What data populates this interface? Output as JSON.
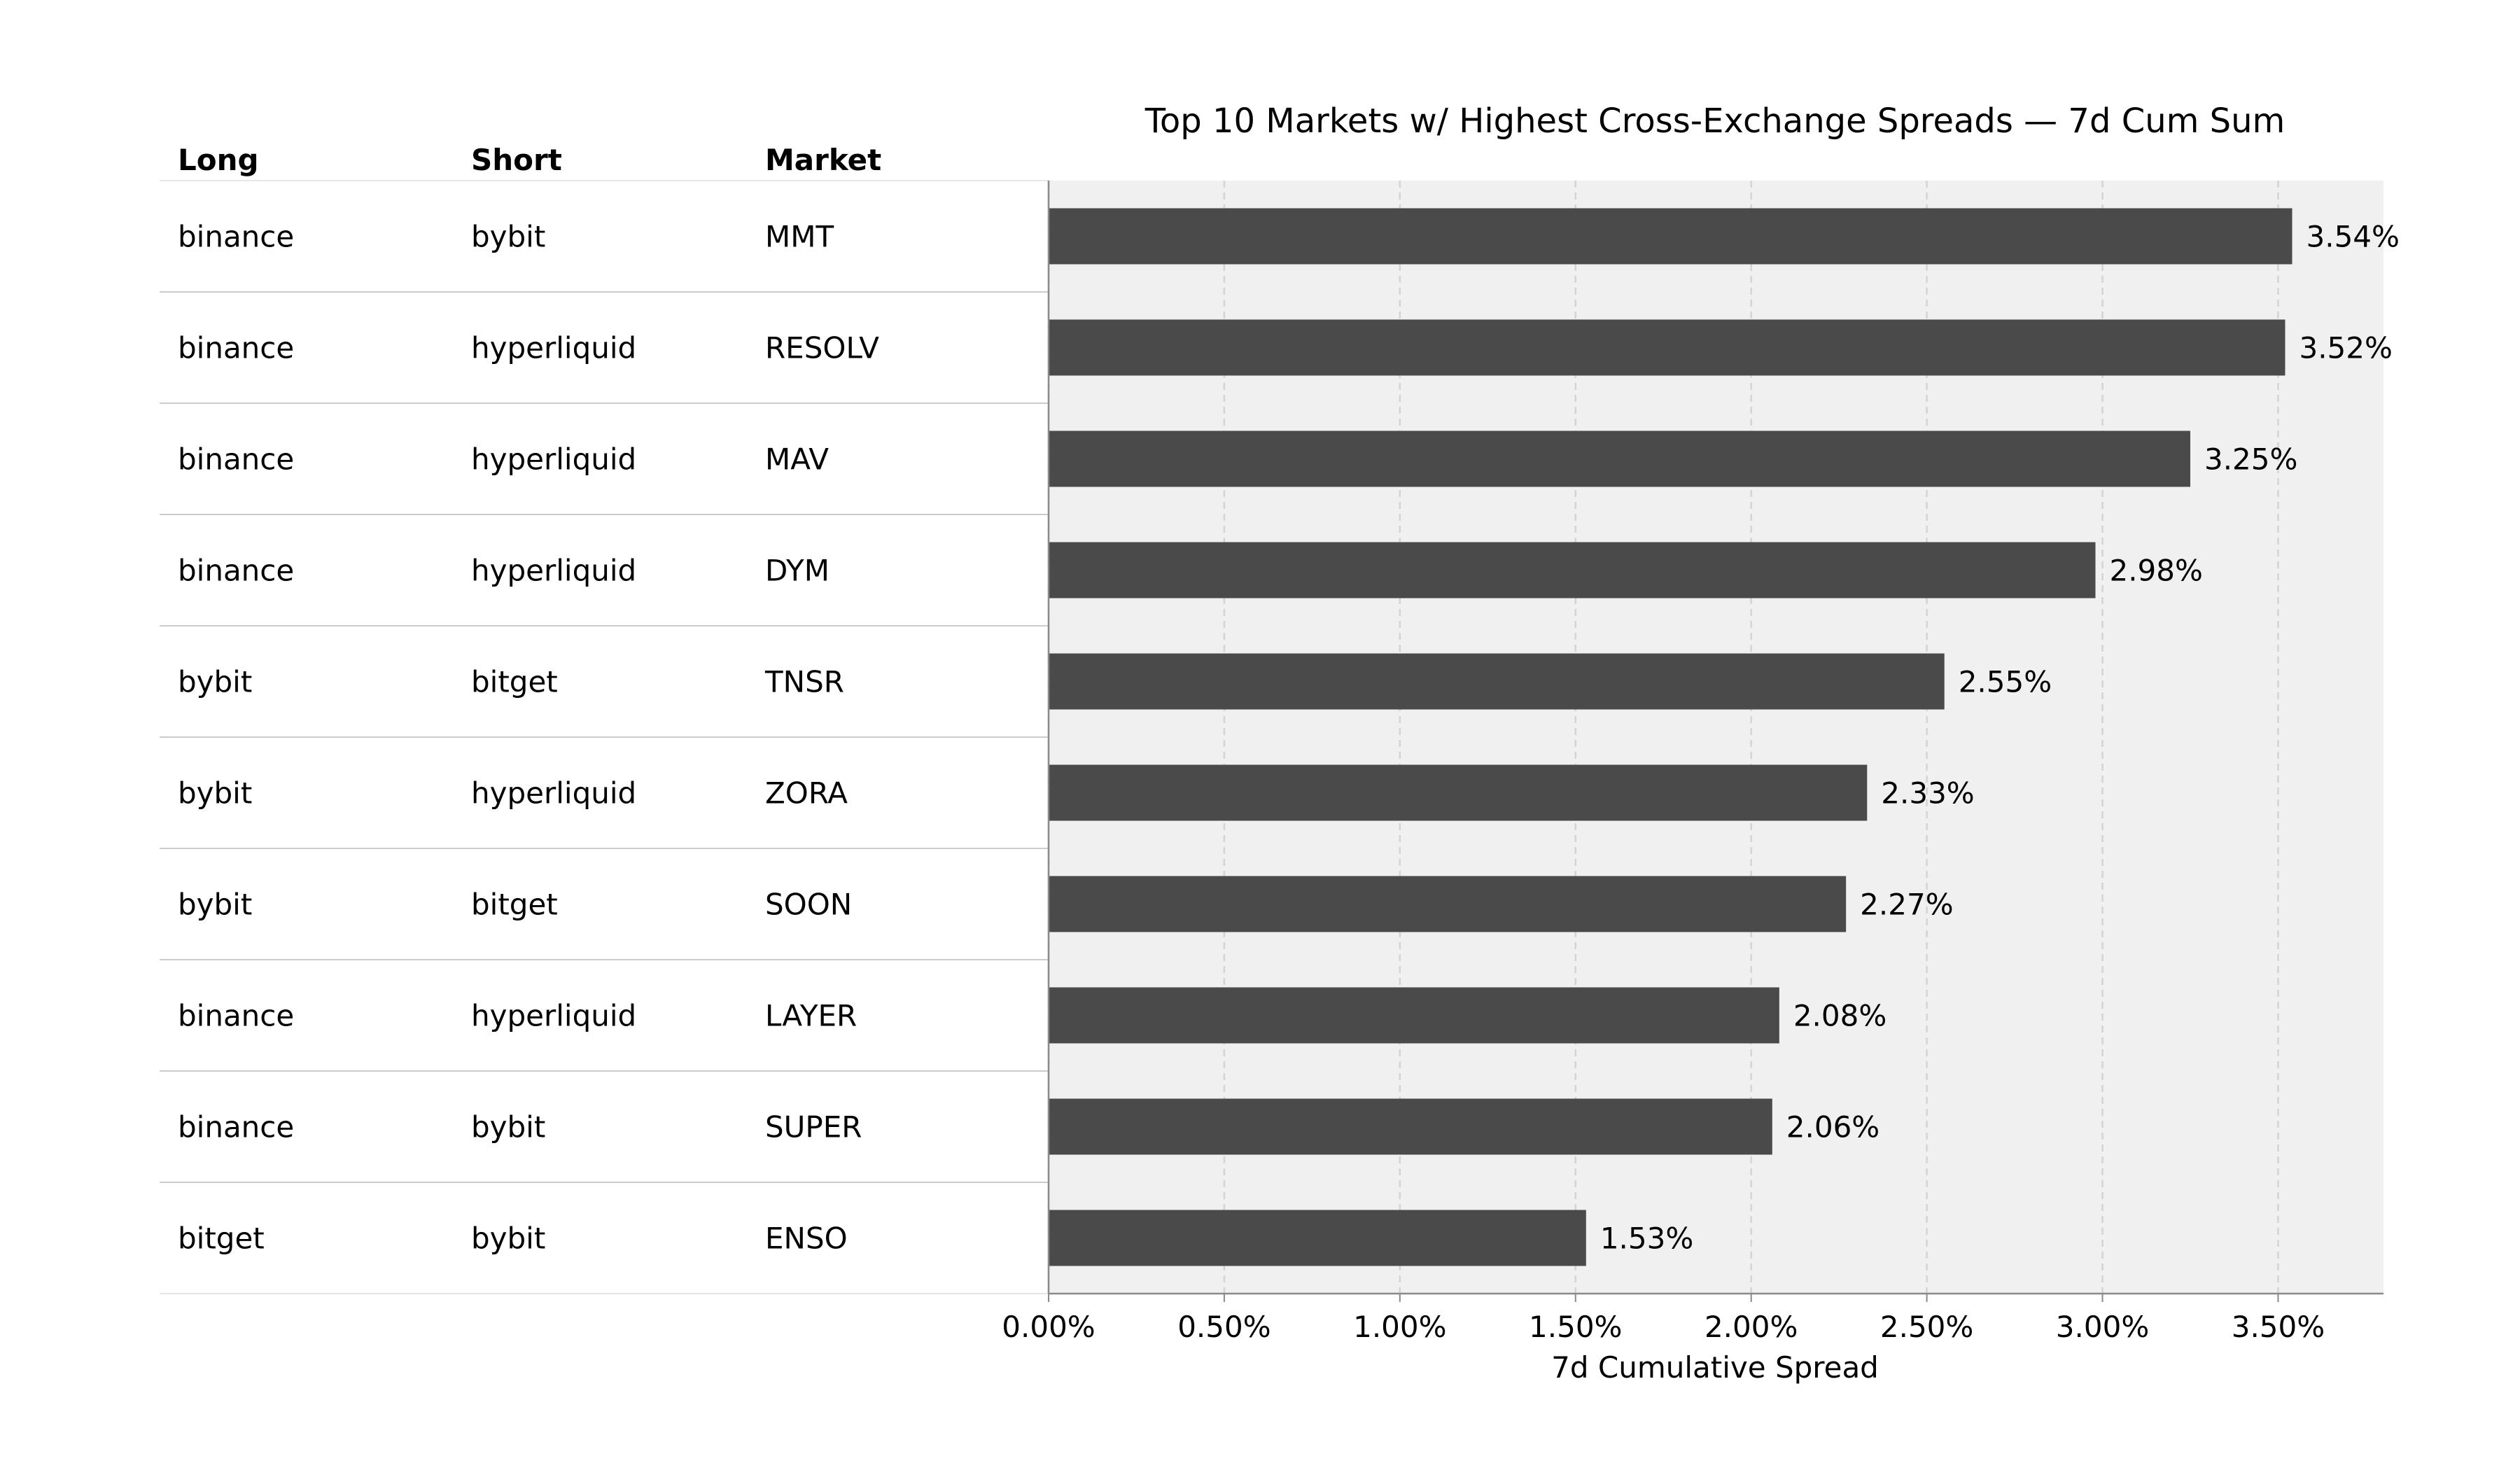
{
  "table": {
    "headers": [
      "Long",
      "Short",
      "Market"
    ],
    "rows": [
      [
        "binance",
        "bybit",
        "MMT"
      ],
      [
        "binance",
        "hyperliquid",
        "RESOLV"
      ],
      [
        "binance",
        "hyperliquid",
        "MAV"
      ],
      [
        "binance",
        "hyperliquid",
        "DYM"
      ],
      [
        "bybit",
        "bitget",
        "TNSR"
      ],
      [
        "bybit",
        "hyperliquid",
        "ZORA"
      ],
      [
        "bybit",
        "bitget",
        "SOON"
      ],
      [
        "binance",
        "hyperliquid",
        "LAYER"
      ],
      [
        "binance",
        "bybit",
        "SUPER"
      ],
      [
        "bitget",
        "bybit",
        "ENSO"
      ]
    ]
  },
  "chart_data": {
    "type": "bar",
    "orientation": "horizontal",
    "title": "Top 10 Markets w/ Highest Cross-Exchange Spreads — 7d Cum Sum",
    "xlabel": "7d Cumulative Spread",
    "categories": [
      "MMT",
      "RESOLV",
      "MAV",
      "DYM",
      "TNSR",
      "ZORA",
      "SOON",
      "LAYER",
      "SUPER",
      "ENSO"
    ],
    "values": [
      3.54,
      3.52,
      3.25,
      2.98,
      2.55,
      2.33,
      2.27,
      2.08,
      2.06,
      1.53
    ],
    "value_labels": [
      "3.54%",
      "3.52%",
      "3.25%",
      "2.98%",
      "2.55%",
      "2.33%",
      "2.27%",
      "2.08%",
      "2.06%",
      "1.53%"
    ],
    "xlim": [
      0,
      3.8
    ],
    "xticks": [
      0,
      0.5,
      1.0,
      1.5,
      2.0,
      2.5,
      3.0,
      3.5
    ],
    "xtick_labels": [
      "0.00%",
      "0.50%",
      "1.00%",
      "1.50%",
      "2.00%",
      "2.50%",
      "3.00%",
      "3.50%"
    ],
    "grid": "vertical dashed",
    "colors": {
      "bar": "#4a4a4a",
      "plot_background": "#f0f0f0",
      "grid": "#d4d4d4",
      "row_divider": "#cccccc",
      "axis": "#8a8a8a"
    }
  }
}
